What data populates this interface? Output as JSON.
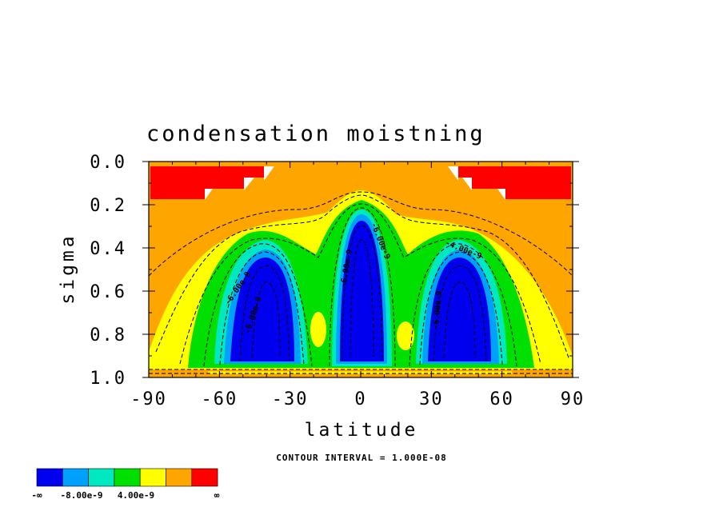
{
  "chart_data": {
    "type": "contour",
    "title": "condensation moistning",
    "xlabel": "latitude",
    "ylabel": "sigma",
    "xlim": [
      -90,
      90
    ],
    "ylim": [
      0.0,
      1.0
    ],
    "y_inverted": true,
    "x_ticks": [
      "-90",
      "-60",
      "-30",
      "0",
      "30",
      "60",
      "90"
    ],
    "y_ticks": [
      "0.0",
      "0.2",
      "0.4",
      "0.6",
      "0.8",
      "1.0"
    ],
    "contour_interval_note": "CONTOUR INTERVAL = 1.000E-08",
    "contour_labels": [
      "-6.00e-9",
      "-6.00e-9",
      "-6.00e-9",
      "-6.00e-9",
      "-4.00e-9",
      "-6.00e-9"
    ],
    "colorbar": {
      "colors": [
        "#0000ee",
        "#00a0ff",
        "#00e8c0",
        "#00e000",
        "#ffff00",
        "#ffa500",
        "#ff0000"
      ],
      "labels": [
        "-∞",
        "-8.00e-9",
        "4.00e-9",
        "∞"
      ]
    },
    "features": [
      {
        "name": "southern minimum",
        "center_lat": -37,
        "sigma_range": [
          0.45,
          0.93
        ]
      },
      {
        "name": "equatorial minimum",
        "center_lat": 0,
        "sigma_range": [
          0.28,
          0.95
        ]
      },
      {
        "name": "northern minimum",
        "center_lat": 38,
        "sigma_range": [
          0.45,
          0.93
        ]
      }
    ]
  }
}
